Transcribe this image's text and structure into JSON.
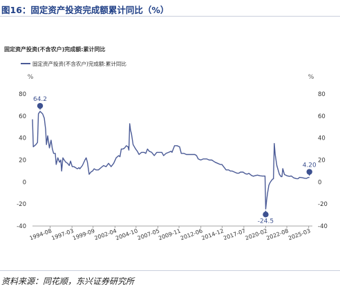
{
  "figure": {
    "title": "图16：固定资产投资完成额累计同比（%）",
    "source": "资料来源：同花顺，东兴证券研究所"
  },
  "colors": {
    "title": "#1f3f86",
    "line": "#4a5a96",
    "marker": "#3d5190",
    "axis_text": "#333333",
    "grid": "#cccccc"
  },
  "chart_data": {
    "type": "line",
    "title": "固定资产投资(不含农户)完成额:累计同比",
    "left_unit": "%",
    "right_unit": "%",
    "ylim": [
      -40,
      80
    ],
    "y_ticks": [
      80,
      60,
      40,
      20,
      0,
      -20,
      -40
    ],
    "y2_ticks": [
      80,
      60,
      40,
      20,
      0,
      -20,
      -40
    ],
    "grid": false,
    "legend_position": "top-left",
    "x_tick_labels": [
      "1994-08",
      "1997-03",
      "1999-09",
      "2002-04",
      "2004-10",
      "2007-05",
      "2009-11",
      "2012-06",
      "2014-12",
      "2017-07",
      "2020-02",
      "2022-08",
      "2025-03"
    ],
    "x_tick_dates": [
      1994.58,
      1997.17,
      1999.67,
      2002.25,
      2004.75,
      2007.33,
      2009.83,
      2012.42,
      2014.92,
      2017.5,
      2020.08,
      2022.58,
      2025.17
    ],
    "x_range": [
      1992.5,
      2025.6
    ],
    "series": [
      {
        "name": "固定资产投资(不含农户)完成额:累计同比",
        "points": [
          [
            1992.5,
            57
          ],
          [
            1992.6,
            32
          ],
          [
            1992.9,
            34
          ],
          [
            1993.1,
            36
          ],
          [
            1993.2,
            62
          ],
          [
            1993.4,
            64.2
          ],
          [
            1993.7,
            62
          ],
          [
            1993.9,
            58
          ],
          [
            1994.05,
            48
          ],
          [
            1994.15,
            34
          ],
          [
            1994.3,
            42
          ],
          [
            1994.5,
            31
          ],
          [
            1994.7,
            38
          ],
          [
            1994.85,
            30
          ],
          [
            1995.0,
            26
          ],
          [
            1995.2,
            26
          ],
          [
            1995.3,
            16
          ],
          [
            1995.5,
            22
          ],
          [
            1995.7,
            18
          ],
          [
            1995.85,
            20
          ],
          [
            1995.95,
            10
          ],
          [
            1996.1,
            22
          ],
          [
            1996.25,
            20
          ],
          [
            1996.45,
            18
          ],
          [
            1996.65,
            17
          ],
          [
            1996.85,
            15
          ],
          [
            1997.0,
            19
          ],
          [
            1997.2,
            14
          ],
          [
            1997.4,
            14
          ],
          [
            1997.6,
            13
          ],
          [
            1997.8,
            12
          ],
          [
            1998.0,
            13
          ],
          [
            1998.1,
            12
          ],
          [
            1998.4,
            15
          ],
          [
            1998.7,
            20
          ],
          [
            1998.85,
            22
          ],
          [
            1999.0,
            18
          ],
          [
            1999.2,
            7
          ],
          [
            1999.4,
            9
          ],
          [
            1999.6,
            10
          ],
          [
            1999.8,
            12
          ],
          [
            2000.0,
            11
          ],
          [
            2000.3,
            11
          ],
          [
            2000.6,
            13
          ],
          [
            2000.9,
            15
          ],
          [
            2001.2,
            14
          ],
          [
            2001.5,
            17
          ],
          [
            2001.8,
            14
          ],
          [
            2002.1,
            17
          ],
          [
            2002.4,
            22
          ],
          [
            2002.7,
            24
          ],
          [
            2002.85,
            23
          ],
          [
            2003.0,
            30
          ],
          [
            2003.2,
            30
          ],
          [
            2003.4,
            31
          ],
          [
            2003.6,
            33
          ],
          [
            2003.8,
            32
          ],
          [
            2003.9,
            29
          ],
          [
            2004.0,
            53
          ],
          [
            2004.1,
            47
          ],
          [
            2004.2,
            44
          ],
          [
            2004.4,
            34
          ],
          [
            2004.7,
            30
          ],
          [
            2004.9,
            28
          ],
          [
            2005.1,
            25
          ],
          [
            2005.4,
            27
          ],
          [
            2005.7,
            27
          ],
          [
            2005.9,
            26
          ],
          [
            2006.1,
            30
          ],
          [
            2006.3,
            28
          ],
          [
            2006.6,
            27
          ],
          [
            2006.9,
            24
          ],
          [
            2007.2,
            27
          ],
          [
            2007.5,
            27
          ],
          [
            2007.8,
            27
          ],
          [
            2008.0,
            24
          ],
          [
            2008.3,
            26
          ],
          [
            2008.6,
            27
          ],
          [
            2008.9,
            28
          ],
          [
            2009.0,
            27
          ],
          [
            2009.1,
            29
          ],
          [
            2009.3,
            33
          ],
          [
            2009.6,
            33
          ],
          [
            2009.9,
            32
          ],
          [
            2010.1,
            26
          ],
          [
            2010.4,
            26
          ],
          [
            2010.7,
            25
          ],
          [
            2010.9,
            25
          ],
          [
            2011.1,
            25
          ],
          [
            2011.4,
            25
          ],
          [
            2011.7,
            25
          ],
          [
            2011.9,
            24
          ],
          [
            2012.1,
            21
          ],
          [
            2012.4,
            20
          ],
          [
            2012.7,
            21
          ],
          [
            2012.9,
            21
          ],
          [
            2013.1,
            21
          ],
          [
            2013.4,
            20
          ],
          [
            2013.7,
            20
          ],
          [
            2013.9,
            19
          ],
          [
            2014.1,
            18
          ],
          [
            2014.4,
            17
          ],
          [
            2014.7,
            16
          ],
          [
            2014.9,
            16
          ],
          [
            2015.1,
            14
          ],
          [
            2015.4,
            11
          ],
          [
            2015.7,
            11
          ],
          [
            2015.9,
            10
          ],
          [
            2016.1,
            10
          ],
          [
            2016.4,
            9
          ],
          [
            2016.7,
            8
          ],
          [
            2016.9,
            8
          ],
          [
            2017.1,
            9
          ],
          [
            2017.4,
            9
          ],
          [
            2017.7,
            7.5
          ],
          [
            2017.9,
            7.2
          ],
          [
            2018.1,
            7.9
          ],
          [
            2018.4,
            6
          ],
          [
            2018.6,
            5.3
          ],
          [
            2018.9,
            5.9
          ],
          [
            2019.1,
            6.3
          ],
          [
            2019.4,
            5.7
          ],
          [
            2019.7,
            5.4
          ],
          [
            2019.9,
            5.4
          ],
          [
            2020.0,
            5.4
          ],
          [
            2020.08,
            -24.5
          ],
          [
            2020.2,
            -16
          ],
          [
            2020.3,
            -10
          ],
          [
            2020.45,
            -3
          ],
          [
            2020.6,
            -0.5
          ],
          [
            2020.8,
            1.8
          ],
          [
            2020.95,
            2.9
          ],
          [
            2021.0,
            2.9
          ],
          [
            2021.1,
            35
          ],
          [
            2021.2,
            25
          ],
          [
            2021.4,
            15
          ],
          [
            2021.7,
            7
          ],
          [
            2021.9,
            4.9
          ],
          [
            2022.0,
            4.9
          ],
          [
            2022.1,
            12.2
          ],
          [
            2022.3,
            6.8
          ],
          [
            2022.6,
            5.7
          ],
          [
            2022.9,
            5.1
          ],
          [
            2023.1,
            5.5
          ],
          [
            2023.4,
            3.8
          ],
          [
            2023.7,
            3.1
          ],
          [
            2023.9,
            3.0
          ],
          [
            2024.1,
            4.2
          ],
          [
            2024.4,
            3.9
          ],
          [
            2024.7,
            3.4
          ],
          [
            2024.9,
            3.2
          ],
          [
            2025.1,
            4.1
          ],
          [
            2025.25,
            4.2
          ]
        ]
      }
    ],
    "annotations": [
      {
        "text": "64.2",
        "x": 1993.4,
        "y": 64.2,
        "position": "above"
      },
      {
        "text": "-24.5",
        "x": 2020.08,
        "y": -24.5,
        "position": "below"
      },
      {
        "text": "4.20",
        "x": 2025.25,
        "y": 4.2,
        "position": "above"
      }
    ]
  }
}
